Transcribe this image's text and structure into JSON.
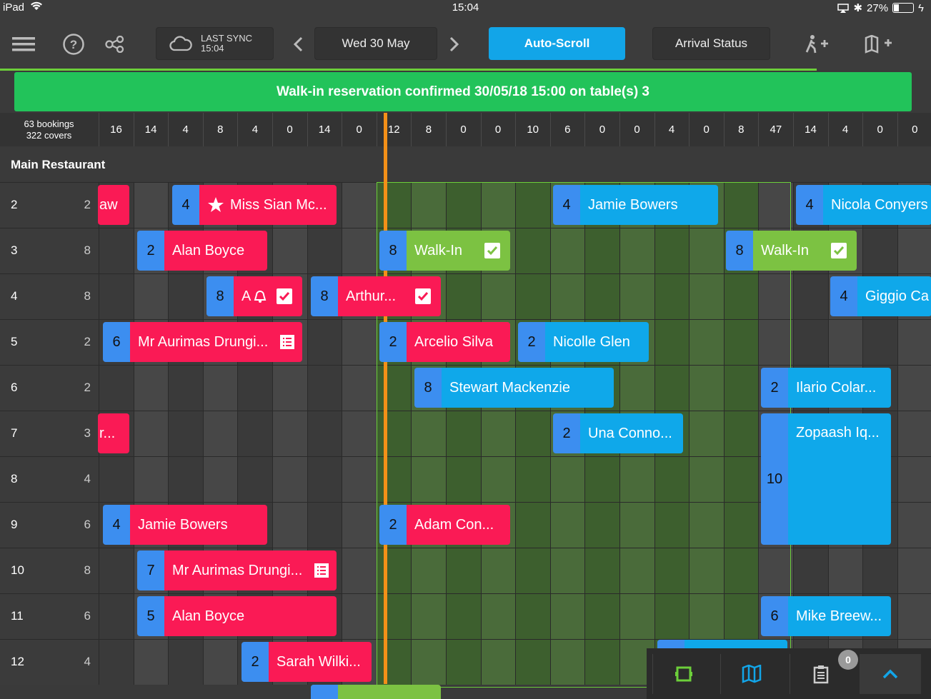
{
  "status_bar": {
    "device": "iPad",
    "time": "15:04",
    "battery": "27%"
  },
  "toolbar": {
    "last_sync_label": "LAST SYNC",
    "last_sync_time": "15:04",
    "date": "Wed 30 May",
    "auto_scroll": "Auto-Scroll",
    "arrival_status": "Arrival Status"
  },
  "banner": "Walk-in reservation confirmed 30/05/18 15:00 on table(s) 3",
  "summary": {
    "bookings": "63 bookings",
    "covers": "322 covers"
  },
  "slot_counts": [
    "16",
    "14",
    "4",
    "8",
    "4",
    "0",
    "14",
    "0",
    "12",
    "8",
    "0",
    "0",
    "10",
    "6",
    "0",
    "0",
    "4",
    "0",
    "8",
    "47",
    "14",
    "4",
    "0",
    "0"
  ],
  "section_title": "Main Restaurant",
  "tables": [
    {
      "table": "2",
      "seats": "2"
    },
    {
      "table": "3",
      "seats": "8"
    },
    {
      "table": "4",
      "seats": "8"
    },
    {
      "table": "5",
      "seats": "2"
    },
    {
      "table": "6",
      "seats": "2"
    },
    {
      "table": "7",
      "seats": "3"
    },
    {
      "table": "8",
      "seats": "4"
    },
    {
      "table": "9",
      "seats": "6"
    },
    {
      "table": "10",
      "seats": "8"
    },
    {
      "table": "11",
      "seats": "6"
    },
    {
      "table": "12",
      "seats": "4"
    }
  ],
  "bookings": [
    {
      "covers": "",
      "name": "aw"
    },
    {
      "covers": "4",
      "name": "Miss Sian Mc..."
    },
    {
      "covers": "4",
      "name": "Jamie Bowers"
    },
    {
      "covers": "4",
      "name": "Nicola Conyers"
    },
    {
      "covers": "2",
      "name": "Alan Boyce"
    },
    {
      "covers": "8",
      "name": "Walk-In"
    },
    {
      "covers": "8",
      "name": "Walk-In"
    },
    {
      "covers": "8",
      "name": "A"
    },
    {
      "covers": "8",
      "name": "Arthur..."
    },
    {
      "covers": "4",
      "name": "Giggio Ca"
    },
    {
      "covers": "6",
      "name": "Mr Aurimas Drungi..."
    },
    {
      "covers": "2",
      "name": "Arcelio Silva"
    },
    {
      "covers": "2",
      "name": "Nicolle Glen"
    },
    {
      "covers": "8",
      "name": "Stewart Mackenzie"
    },
    {
      "covers": "2",
      "name": "Ilario Colar..."
    },
    {
      "covers": "",
      "name": "r..."
    },
    {
      "covers": "2",
      "name": "Una Conno..."
    },
    {
      "covers": "10",
      "name": "Zopaash Iq..."
    },
    {
      "covers": "4",
      "name": "Jamie Bowers"
    },
    {
      "covers": "2",
      "name": "Adam Con..."
    },
    {
      "covers": "7",
      "name": "Mr Aurimas Drungi..."
    },
    {
      "covers": "5",
      "name": "Alan Boyce"
    },
    {
      "covers": "6",
      "name": "Mike Breew..."
    },
    {
      "covers": "2",
      "name": "Sarah Wilki..."
    }
  ],
  "notifications_count": "0",
  "icons": [
    "menu-icon",
    "help-icon",
    "share-icon",
    "cloud-icon",
    "chevron-left-icon",
    "chevron-right-icon",
    "walk-in-add-icon",
    "book-add-icon",
    "star-icon",
    "bell-icon",
    "check-icon",
    "memo-icon",
    "floorplan-icon",
    "book-icon",
    "clipboard-icon",
    "chevron-up-icon"
  ]
}
